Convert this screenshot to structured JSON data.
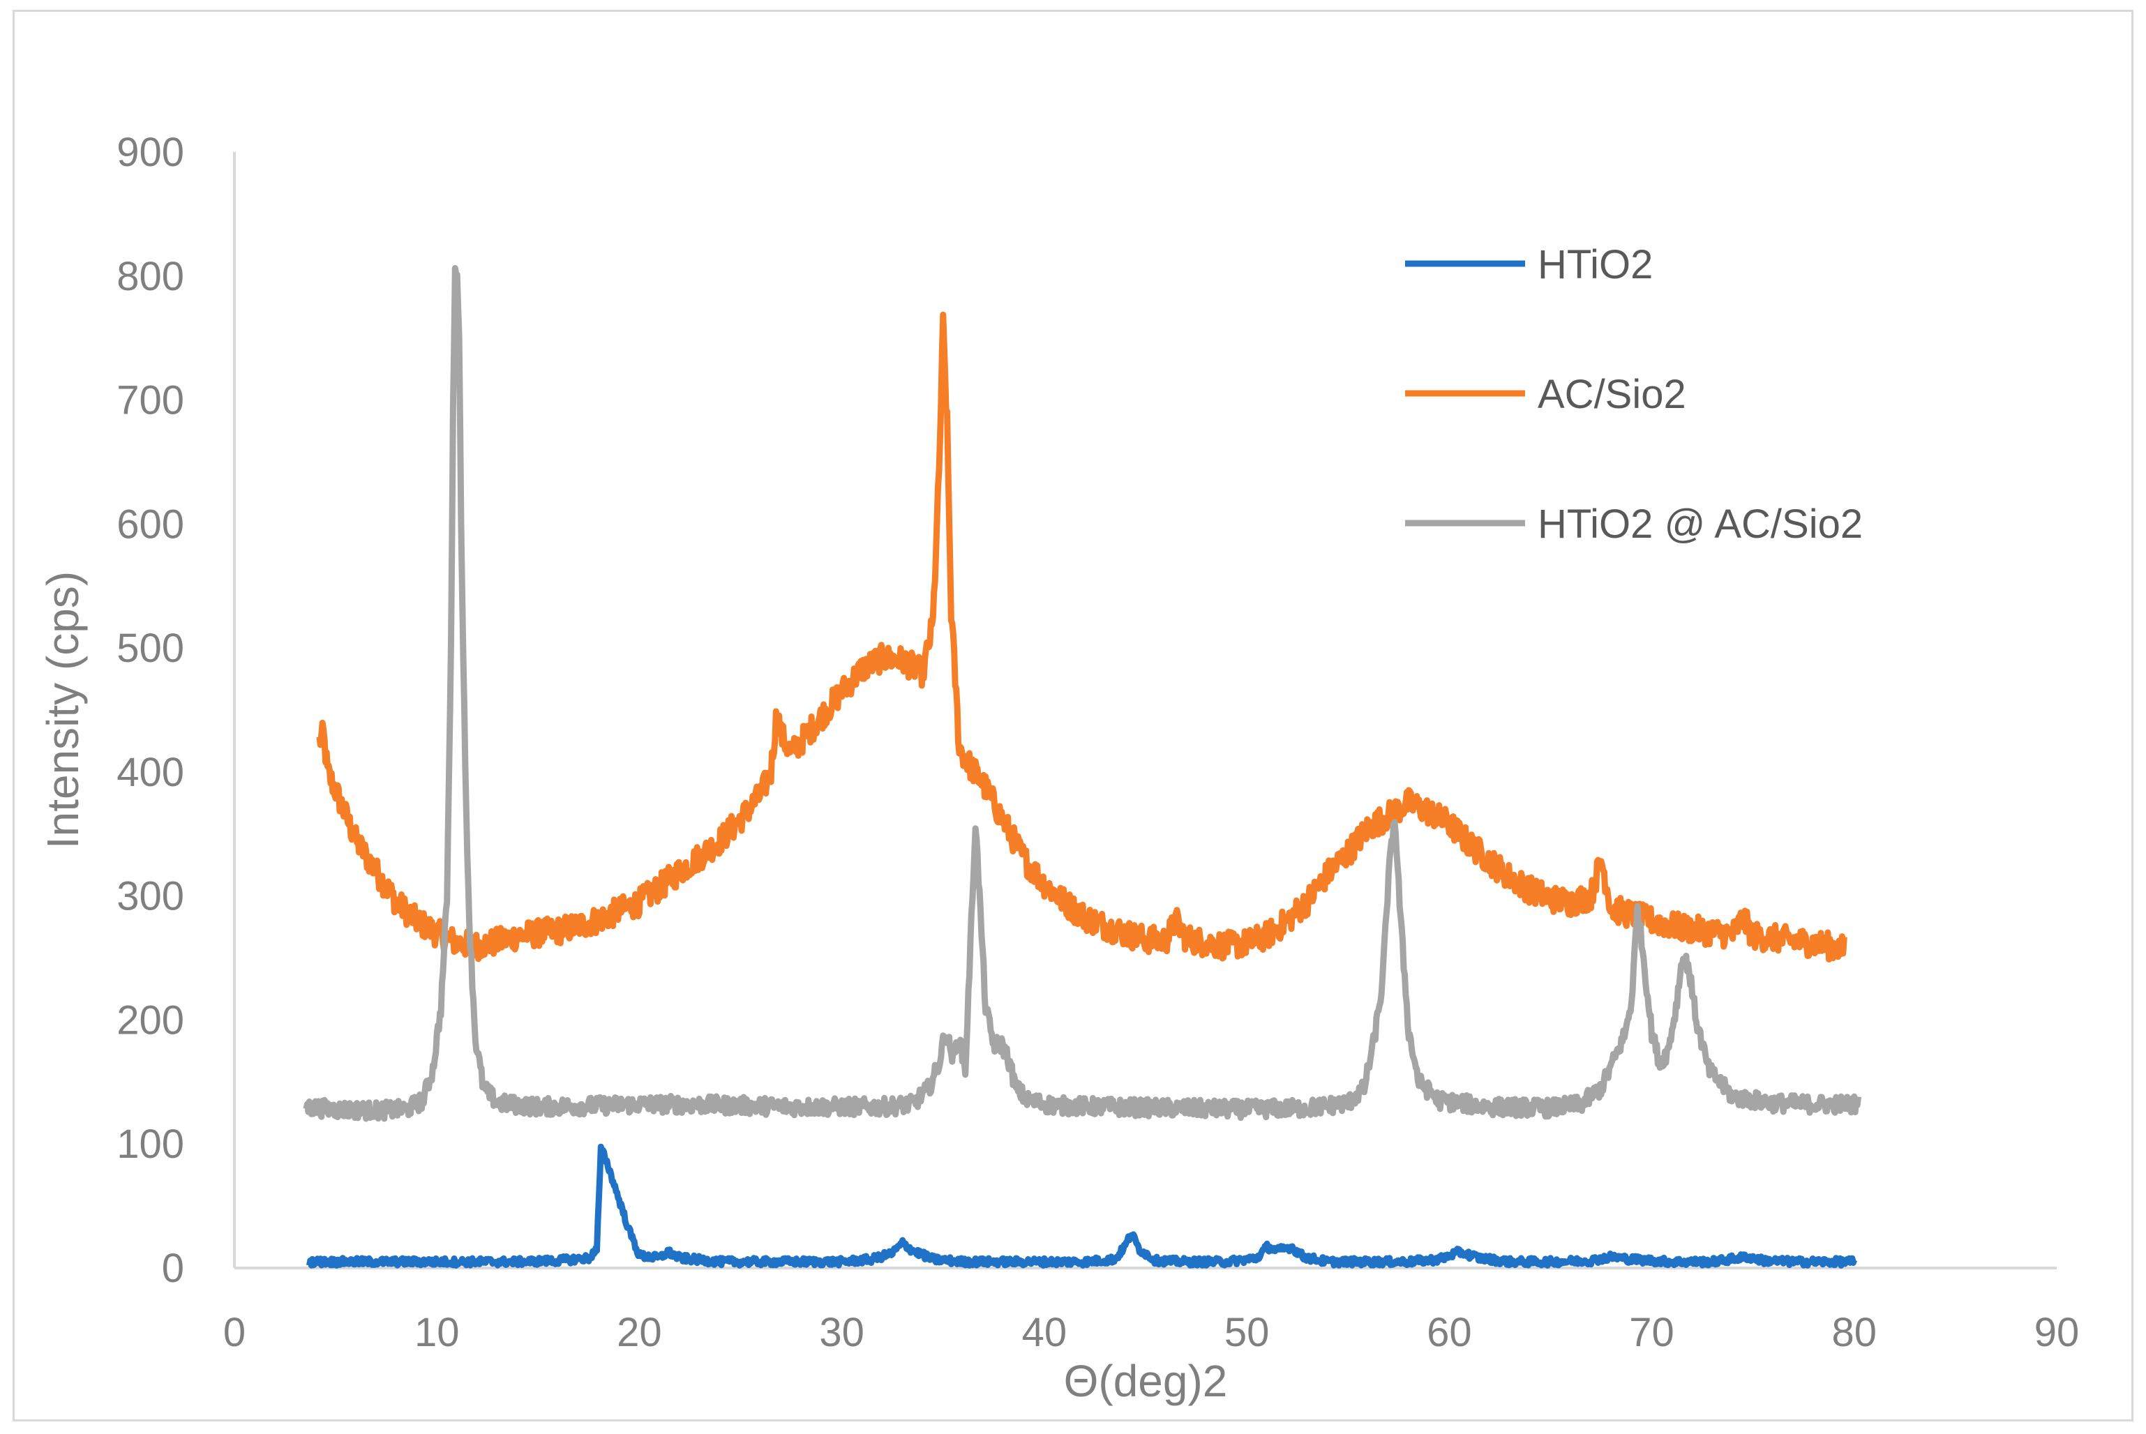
{
  "chart_data": {
    "type": "line",
    "title": "",
    "xlabel": "Θ(deg)2",
    "ylabel": "Intensity (cps)",
    "xlim": [
      0,
      90
    ],
    "ylim": [
      0,
      900
    ],
    "xticks": [
      0,
      10,
      20,
      30,
      40,
      50,
      60,
      70,
      80,
      90
    ],
    "yticks": [
      0,
      100,
      200,
      300,
      400,
      500,
      600,
      700,
      800,
      900
    ],
    "grid": false,
    "legend_position": "top-right",
    "series": [
      {
        "name": "HTiO2",
        "color": "#1f72c6",
        "x": [
          3.7,
          6,
          8,
          10,
          12,
          14,
          16,
          17.5,
          17.9,
          18.1,
          18.3,
          18.6,
          19,
          19.5,
          20,
          21,
          21.4,
          22,
          24,
          26,
          28,
          30,
          31.5,
          32.5,
          33,
          33.5,
          34.5,
          36,
          38,
          40,
          42,
          43.5,
          44,
          44.3,
          44.7,
          45.5,
          47,
          49,
          50.5,
          51,
          51.5,
          52.2,
          52.8,
          54,
          56,
          58,
          59.5,
          60.5,
          61.5,
          63,
          65,
          67,
          68,
          69,
          71,
          73,
          74.7,
          75.5,
          77,
          80
        ],
        "values": [
          5,
          5,
          5,
          5,
          5,
          5,
          6,
          8,
          15,
          95,
          90,
          75,
          55,
          30,
          10,
          8,
          13,
          8,
          5,
          5,
          5,
          5,
          7,
          12,
          20,
          14,
          7,
          5,
          5,
          5,
          5,
          7,
          18,
          28,
          15,
          6,
          5,
          5,
          8,
          17,
          14,
          17,
          9,
          5,
          5,
          5,
          7,
          13,
          8,
          5,
          5,
          6,
          9,
          7,
          5,
          5,
          9,
          6,
          5,
          5
        ]
      },
      {
        "name": "AC/Sio2",
        "color": "#f67e26",
        "x": [
          4.2,
          4.4,
          4.6,
          5,
          6,
          7,
          8,
          9,
          10,
          11,
          12,
          13,
          14,
          15,
          16,
          17,
          18,
          19,
          20,
          21,
          22,
          23,
          24,
          25,
          26,
          26.5,
          26.8,
          27,
          27.5,
          28,
          29,
          30,
          31,
          32,
          33,
          34,
          34.5,
          34.8,
          35,
          35.2,
          35.4,
          35.8,
          36.2,
          37,
          38,
          39,
          40,
          41,
          42,
          43,
          44,
          45,
          46,
          46.5,
          47,
          48,
          49,
          50,
          51,
          52,
          53,
          54,
          55,
          56,
          57,
          58,
          59,
          60,
          61,
          62,
          63,
          64,
          65,
          66,
          67,
          67.5,
          68,
          69,
          70,
          71,
          72,
          73,
          74,
          74.5,
          75,
          76,
          77,
          78,
          79,
          79.5
        ],
        "values": [
          425,
          430,
          400,
          385,
          345,
          320,
          295,
          280,
          270,
          262,
          260,
          263,
          268,
          270,
          272,
          276,
          281,
          288,
          295,
          307,
          320,
          332,
          345,
          362,
          382,
          400,
          450,
          430,
          415,
          425,
          445,
          465,
          483,
          492,
          490,
          480,
          520,
          640,
          760,
          680,
          530,
          420,
          408,
          390,
          360,
          330,
          310,
          295,
          283,
          276,
          270,
          265,
          264,
          280,
          266,
          262,
          260,
          262,
          268,
          280,
          296,
          318,
          335,
          355,
          365,
          375,
          368,
          358,
          342,
          328,
          315,
          305,
          298,
          295,
          300,
          330,
          290,
          285,
          280,
          276,
          273,
          271,
          269,
          282,
          268,
          266,
          264,
          262,
          259,
          257
        ]
      },
      {
        "name": "HTiO2 @ AC/Sio2",
        "color": "#a5a5a5",
        "x": [
          3.5,
          5,
          7,
          8.5,
          9.3,
          9.8,
          10.2,
          10.5,
          10.7,
          10.8,
          10.9,
          11,
          11.1,
          11.2,
          11.4,
          11.6,
          11.9,
          12.3,
          13,
          15,
          18,
          20,
          22,
          25,
          28,
          30,
          32,
          33.5,
          34.3,
          34.8,
          35.1,
          35.5,
          35.8,
          36.1,
          36.4,
          36.6,
          36.8,
          37.1,
          37.5,
          37.9,
          38.2,
          38.6,
          39.2,
          40.5,
          43,
          46,
          50,
          53,
          55,
          55.8,
          56.3,
          56.7,
          57,
          57.3,
          57.6,
          58,
          58.5,
          59.5,
          62,
          65,
          66.5,
          67.5,
          68.2,
          68.7,
          69,
          69.3,
          69.6,
          70,
          70.4,
          70.8,
          71.2,
          71.5,
          71.8,
          72.2,
          72.8,
          74,
          76,
          78,
          80.2
        ],
        "values": [
          130,
          128,
          127,
          128,
          135,
          160,
          210,
          300,
          500,
          700,
          800,
          808,
          750,
          600,
          400,
          280,
          185,
          145,
          133,
          130,
          131,
          132,
          132,
          131,
          130,
          130,
          130,
          132,
          145,
          165,
          190,
          170,
          185,
          160,
          280,
          360,
          300,
          210,
          180,
          180,
          170,
          145,
          135,
          131,
          130,
          129,
          128,
          129,
          133,
          145,
          185,
          230,
          315,
          365,
          280,
          190,
          150,
          135,
          130,
          129,
          132,
          145,
          170,
          190,
          215,
          290,
          250,
          190,
          165,
          175,
          210,
          250,
          245,
          200,
          160,
          138,
          133,
          132,
          132
        ]
      }
    ]
  }
}
